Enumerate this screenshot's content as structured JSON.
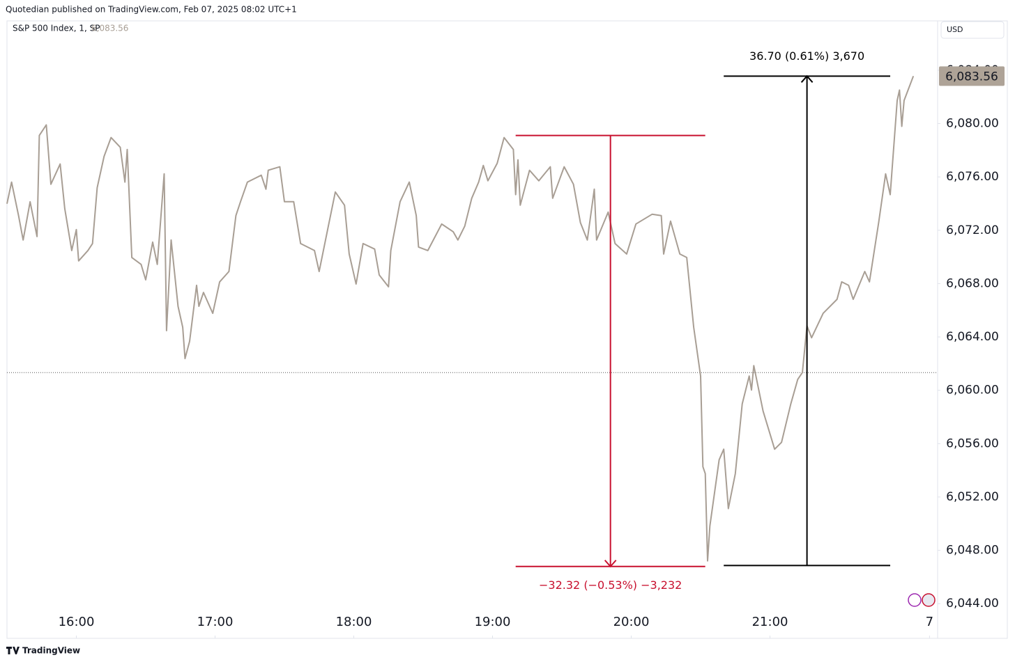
{
  "header": "Quotedian published on TradingView.com, Feb 07, 2025 08:02 UTC+1",
  "footer": "TradingView",
  "chart_data": {
    "type": "line",
    "title": "S&P 500 Index, 1, SP",
    "last_value_label": "6,083.56",
    "currency": "USD",
    "x": [
      0,
      2,
      5,
      7,
      10,
      13,
      14,
      17,
      19,
      23,
      25,
      28,
      30,
      31,
      35,
      37,
      39,
      42,
      45,
      49,
      51,
      52,
      54,
      58,
      60,
      63,
      65,
      68,
      69,
      71,
      74,
      76,
      77,
      79,
      82,
      83,
      85,
      89,
      92,
      96,
      99,
      101,
      104,
      110,
      112,
      113,
      118,
      120,
      124,
      127,
      133,
      135,
      139,
      142,
      146,
      148,
      151,
      154,
      159,
      161,
      165,
      166,
      170,
      174,
      177,
      178,
      182,
      188,
      193,
      195,
      198,
      201,
      204,
      206,
      208,
      212,
      215,
      219,
      220,
      221,
      222,
      226,
      230,
      235,
      236,
      241,
      245,
      248,
      251,
      254,
      255,
      260,
      263,
      268,
      272,
      279,
      283,
      284,
      287,
      291,
      294,
      297,
      300,
      301,
      302,
      303,
      304,
      308,
      310,
      312,
      315,
      318,
      321,
      322,
      323,
      327,
      332,
      335,
      339,
      342,
      344,
      346,
      348,
      353,
      359,
      361,
      364,
      366,
      371,
      373,
      377,
      380,
      382,
      385,
      386,
      387,
      388,
      392
    ],
    "series": [
      {
        "name": "S&P 500 Index",
        "color": "#a89e94",
        "values": [
          6073.99,
          6075.61,
          6073.1,
          6071.27,
          6074.14,
          6071.53,
          6079.11,
          6079.9,
          6075.45,
          6076.97,
          6073.62,
          6070.48,
          6072.05,
          6069.7,
          6070.48,
          6071.0,
          6075.19,
          6077.54,
          6078.95,
          6078.22,
          6075.61,
          6078.06,
          6069.96,
          6069.44,
          6068.28,
          6071.11,
          6069.44,
          6076.23,
          6064.47,
          6071.27,
          6066.3,
          6064.73,
          6062.38,
          6063.68,
          6067.87,
          6066.3,
          6067.34,
          6065.77,
          6068.13,
          6068.91,
          6073.1,
          6074.14,
          6075.61,
          6076.13,
          6075.08,
          6076.5,
          6076.76,
          6074.14,
          6074.14,
          6071.0,
          6070.48,
          6068.91,
          6072.31,
          6074.87,
          6073.88,
          6070.22,
          6067.97,
          6071.0,
          6070.59,
          6068.65,
          6067.76,
          6070.48,
          6074.14,
          6075.61,
          6073.1,
          6070.74,
          6070.48,
          6072.47,
          6071.89,
          6071.27,
          6072.31,
          6074.4,
          6075.61,
          6076.86,
          6075.71,
          6077.02,
          6078.95,
          6078.06,
          6074.67,
          6077.28,
          6073.88,
          6076.5,
          6075.71,
          6076.76,
          6074.4,
          6076.76,
          6075.45,
          6072.57,
          6071.27,
          6075.08,
          6071.27,
          6073.36,
          6071.0,
          6070.22,
          6072.47,
          6073.2,
          6073.1,
          6070.22,
          6072.68,
          6070.22,
          6069.96,
          6064.73,
          6061.07,
          6054.27,
          6053.75,
          6047.21,
          6049.82,
          6054.79,
          6055.58,
          6051.13,
          6053.75,
          6058.98,
          6061.07,
          6060.02,
          6061.85,
          6058.45,
          6055.58,
          6056.1,
          6058.98,
          6060.81,
          6061.33,
          6064.83,
          6063.94,
          6065.77,
          6066.82,
          6068.13,
          6067.87,
          6066.82,
          6068.91,
          6068.13,
          6072.57,
          6076.23,
          6074.67,
          6081.73,
          6082.51,
          6079.79,
          6081.73,
          6083.56
        ]
      }
    ],
    "reference_line": 6061.33,
    "xlim": [
      0,
      402.5
    ],
    "xticks": [
      {
        "value": 30,
        "label": "16:00"
      },
      {
        "value": 90,
        "label": "17:00"
      },
      {
        "value": 150,
        "label": "18:00"
      },
      {
        "value": 210,
        "label": "19:00"
      },
      {
        "value": 270,
        "label": "20:00"
      },
      {
        "value": 330,
        "label": "21:00"
      },
      {
        "value": 399,
        "label": "7"
      }
    ],
    "ylim": [
      6041.4,
      6087.7
    ],
    "yticks": [
      {
        "value": 6044,
        "label": "6,044.00"
      },
      {
        "value": 6048,
        "label": "6,048.00"
      },
      {
        "value": 6052,
        "label": "6,052.00"
      },
      {
        "value": 6056,
        "label": "6,056.00"
      },
      {
        "value": 6060,
        "label": "6,060.00"
      },
      {
        "value": 6064,
        "label": "6,064.00"
      },
      {
        "value": 6068,
        "label": "6,068.00"
      },
      {
        "value": 6072,
        "label": "6,072.00"
      },
      {
        "value": 6076,
        "label": "6,076.00"
      },
      {
        "value": 6080,
        "label": "6,080.00"
      },
      {
        "value": 6084,
        "label": "6,084.00"
      }
    ],
    "measures": [
      {
        "label": "−32.32 (−0.53%) −3,232",
        "color": "#c8102e",
        "start": 6079.11,
        "end": 6046.79,
        "x": [
          220,
          302
        ],
        "xmid": 261
      },
      {
        "label": "36.70 (0.61%) 3,670",
        "color": "#000000",
        "start": 6046.86,
        "end": 6083.56,
        "x": [
          310,
          382
        ],
        "xmid": 346
      }
    ]
  }
}
